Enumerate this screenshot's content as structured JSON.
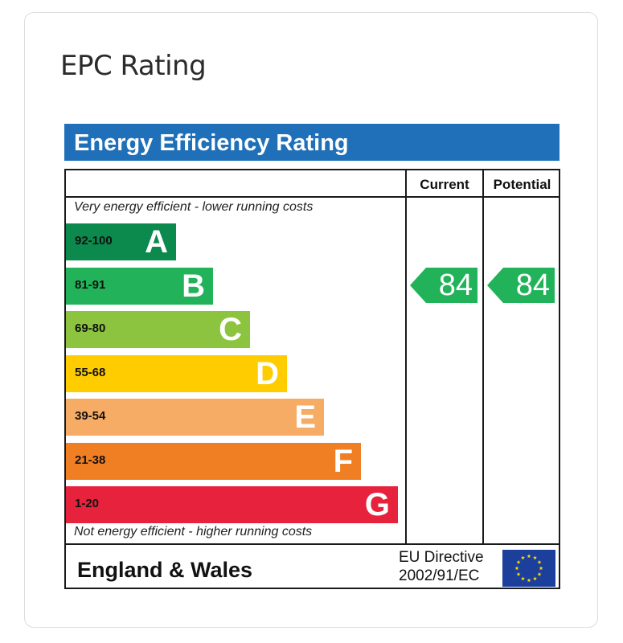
{
  "card": {
    "title": "EPC Rating"
  },
  "chart_data": {
    "type": "table",
    "title": "Energy Efficiency Rating",
    "columns": [
      "Current",
      "Potential"
    ],
    "top_note": "Very energy efficient - lower running costs",
    "bottom_note": "Not energy efficient - higher running costs",
    "bands": [
      {
        "range": "92-100",
        "letter": "A",
        "color": "#0c8a4d"
      },
      {
        "range": "81-91",
        "letter": "B",
        "color": "#22b35a"
      },
      {
        "range": "69-80",
        "letter": "C",
        "color": "#8cc43f"
      },
      {
        "range": "55-68",
        "letter": "D",
        "color": "#ffcc00"
      },
      {
        "range": "39-54",
        "letter": "E",
        "color": "#f6ac64"
      },
      {
        "range": "21-38",
        "letter": "F",
        "color": "#f07f24"
      },
      {
        "range": "1-20",
        "letter": "G",
        "color": "#e7223c"
      }
    ],
    "current": 84,
    "potential": 84,
    "rating_band": "B",
    "region": "England & Wales",
    "directive_line1": "EU Directive",
    "directive_line2": "2002/91/EC",
    "header_color": "#1f70b8"
  }
}
